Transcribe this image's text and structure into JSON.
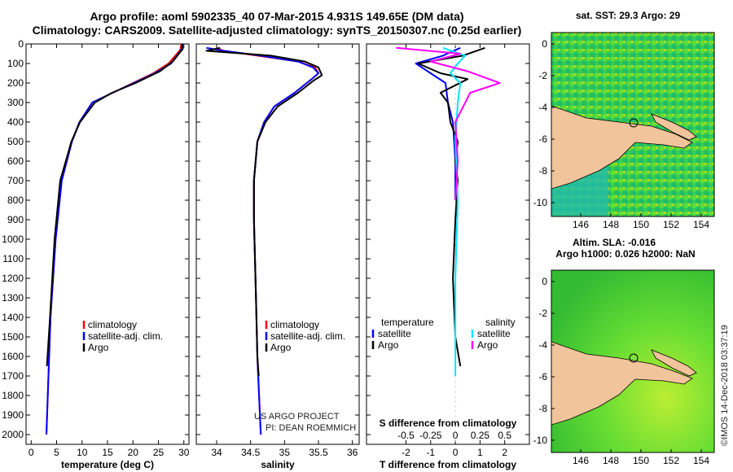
{
  "header": {
    "line1": "Argo profile: aoml 5902335_40 07-Mar-2015 4.931S 149.65E (DM data)",
    "line2": "Climatology: CARS2009. Satellite-adjusted climatology: synTS_20150307.nc (0.25d earlier)"
  },
  "colors": {
    "clim": "#ff0000",
    "sat": "#0000ff",
    "argo": "#000000",
    "sat_s": "#00e5ff",
    "argo_s": "#ff00ff",
    "land": "#f2c49b"
  },
  "chart_data": [
    {
      "type": "line",
      "id": "temperature",
      "xlabel": "temperature (deg C)",
      "ylabel": "",
      "xlim": [
        -1,
        31
      ],
      "ylim": [
        2050,
        0
      ],
      "xticks": [
        0,
        5,
        10,
        15,
        20,
        25,
        30
      ],
      "yticks": [
        0,
        100,
        200,
        300,
        400,
        500,
        600,
        700,
        800,
        900,
        1000,
        1100,
        1200,
        1300,
        1400,
        1500,
        1600,
        1700,
        1800,
        1900,
        2000
      ],
      "legend": [
        "climatology",
        "satellite-adj. clim.",
        "Argo"
      ],
      "series": [
        {
          "name": "climatology",
          "color": "#ff0000",
          "x": [
            29.5,
            29.3,
            27,
            24,
            20,
            16,
            12,
            9.5,
            8,
            7,
            6,
            4.8,
            3.8,
            3
          ],
          "y": [
            0,
            30,
            100,
            150,
            200,
            250,
            300,
            400,
            500,
            600,
            700,
            1000,
            1400,
            2000
          ]
        },
        {
          "name": "satellite-adj. clim.",
          "color": "#0000ff",
          "x": [
            29.8,
            29.5,
            27.5,
            24.3,
            20.2,
            16,
            12,
            9.5,
            8,
            7,
            6,
            4.8,
            3.8,
            3
          ],
          "y": [
            0,
            30,
            100,
            150,
            200,
            250,
            300,
            400,
            500,
            600,
            700,
            1000,
            1400,
            2000
          ]
        },
        {
          "name": "Argo",
          "color": "#000000",
          "x": [
            29.6,
            29.8,
            27.8,
            25.3,
            20.5,
            15.9,
            12.5,
            9.6,
            7.9,
            6.8,
            5.7,
            4.6,
            3.7,
            3.1
          ],
          "y": [
            0,
            25,
            90,
            140,
            200,
            250,
            300,
            400,
            500,
            600,
            700,
            1000,
            1400,
            1650
          ]
        }
      ]
    },
    {
      "type": "line",
      "id": "salinity",
      "xlabel": "salinity",
      "ylabel": "",
      "xlim": [
        33.7,
        36.1
      ],
      "ylim": [
        2050,
        0
      ],
      "xticks": [
        34,
        34.5,
        35,
        35.5,
        36
      ],
      "legend": [
        "climatology",
        "satellite-adj. clim.",
        "Argo"
      ],
      "series": [
        {
          "name": "climatology",
          "color": "#ff0000",
          "x": [
            34.0,
            34.1,
            34.6,
            35.2,
            35.45,
            35.5,
            35.4,
            35.15,
            34.85,
            34.7,
            34.6,
            34.55,
            34.55,
            34.58,
            34.6,
            34.65
          ],
          "y": [
            20,
            35,
            60,
            90,
            120,
            150,
            180,
            250,
            320,
            400,
            500,
            700,
            900,
            1300,
            1600,
            2000
          ]
        },
        {
          "name": "satellite-adj. clim.",
          "color": "#0000ff",
          "x": [
            33.85,
            34.1,
            34.65,
            35.2,
            35.42,
            35.5,
            35.4,
            35.15,
            34.85,
            34.7,
            34.6,
            34.55,
            34.55,
            34.58,
            34.6,
            34.65
          ],
          "y": [
            20,
            35,
            60,
            90,
            120,
            150,
            180,
            250,
            320,
            400,
            500,
            700,
            900,
            1300,
            1600,
            2000
          ]
        },
        {
          "name": "Argo",
          "color": "#000000",
          "x": [
            34.05,
            33.85,
            34.8,
            35.3,
            35.5,
            35.55,
            35.42,
            35.2,
            34.9,
            34.72,
            34.6,
            34.55,
            34.55,
            34.58,
            34.6,
            34.62
          ],
          "y": [
            20,
            35,
            60,
            90,
            120,
            160,
            190,
            250,
            320,
            400,
            500,
            700,
            900,
            1300,
            1600,
            1700
          ]
        }
      ]
    },
    {
      "type": "line",
      "id": "differences",
      "xlabel": "T difference from climatology",
      "x2label": "S difference from climatology",
      "xlim": [
        -3.6,
        3
      ],
      "ylim": [
        2050,
        0
      ],
      "xticks": [
        -2,
        -1,
        0,
        1,
        2
      ],
      "x2ticks": [
        "-0.5",
        "-0.25",
        "0",
        "0.25",
        "0.5"
      ],
      "x2tick_positions": [
        -2,
        -1,
        0,
        1,
        2
      ],
      "legend_left_title": "temperature",
      "legend_right_title": "salinity",
      "legend": [
        "satellite",
        "Argo",
        "satellite",
        "Argo"
      ],
      "series": [
        {
          "name": "temperature satellite",
          "color": "#0000ff",
          "x": [
            0.2,
            -0.5,
            -1.6,
            -1.0,
            -0.4,
            -0.3,
            -0.1,
            0,
            0
          ],
          "y": [
            20,
            60,
            100,
            150,
            200,
            300,
            400,
            600,
            800
          ]
        },
        {
          "name": "temperature Argo",
          "color": "#000000",
          "x": [
            1.2,
            0.3,
            -1.5,
            -0.6,
            0.5,
            -0.6,
            -0.3,
            -0.2,
            0.1,
            0,
            0.1,
            0,
            -0.1,
            0,
            0.2
          ],
          "y": [
            20,
            60,
            100,
            150,
            180,
            250,
            300,
            400,
            500,
            600,
            700,
            900,
            1200,
            1500,
            1650
          ]
        },
        {
          "name": "salinity satellite",
          "color": "#00e5ff",
          "x": [
            -0.5,
            0.4,
            0.1,
            -0.2,
            0.2,
            0.1,
            0,
            0.1,
            0,
            0
          ],
          "y": [
            20,
            60,
            100,
            150,
            200,
            300,
            500,
            800,
            1200,
            1700
          ]
        },
        {
          "name": "salinity Argo",
          "color": "#ff00ff",
          "x": [
            -2.4,
            0.2,
            -1.0,
            0.5,
            1.8,
            0.6,
            0,
            0.1,
            0
          ],
          "y": [
            20,
            50,
            90,
            140,
            200,
            250,
            400,
            600,
            800
          ]
        }
      ]
    },
    {
      "type": "heatmap",
      "id": "sst_map",
      "title": "sat. SST: 29.3 Argo: 29",
      "xticks": [
        "146",
        "148",
        "150",
        "152",
        "154"
      ],
      "yticks": [
        "0",
        "-2",
        "-4",
        "-6",
        "-8",
        "-10"
      ]
    },
    {
      "type": "heatmap",
      "id": "sla_map",
      "title_line1": "Altim. SLA: -0.016",
      "title_line2": "Argo h1000: 0.026 h2000: NaN",
      "xticks": [
        "146",
        "148",
        "150",
        "152",
        "154"
      ],
      "yticks": [
        "0",
        "-2",
        "-4",
        "-6",
        "-8",
        "-10"
      ]
    }
  ],
  "credits": {
    "project": "US ARGO PROJECT",
    "pi": "PI: DEAN ROEMMICH"
  },
  "watermark": "©IMOS 14-Dec-2018 03:37:19"
}
